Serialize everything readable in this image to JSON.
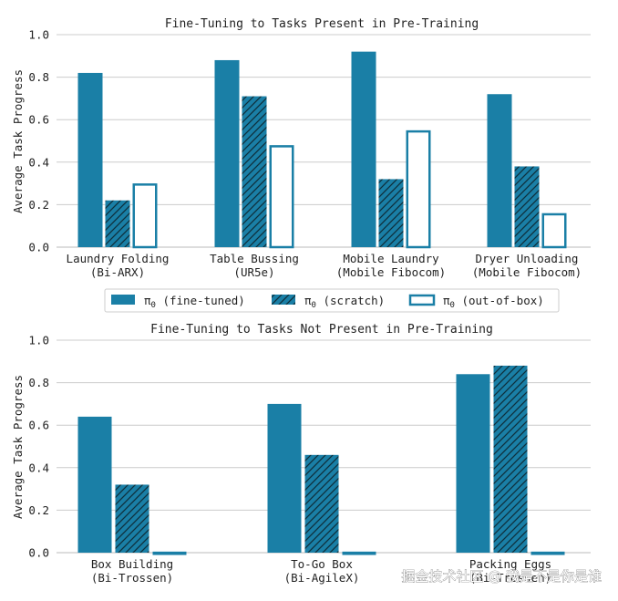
{
  "colors": {
    "bar": "#1a7fa6",
    "hatch": "#0e2f3c",
    "grid": "#cccccc",
    "axis": "#bbbbbb"
  },
  "chart_data": [
    {
      "type": "bar",
      "title": "Fine-Tuning to Tasks Present in Pre-Training",
      "ylabel": "Average Task Progress",
      "ylim": [
        0,
        1.0
      ],
      "yticks": [
        "0.0",
        "0.2",
        "0.4",
        "0.6",
        "0.8",
        "1.0"
      ],
      "categories": [
        [
          "Laundry Folding",
          "(Bi-ARX)"
        ],
        [
          "Table Bussing",
          "(UR5e)"
        ],
        [
          "Mobile Laundry",
          "(Mobile Fibocom)"
        ],
        [
          "Dryer Unloading",
          "(Mobile Fibocom)"
        ]
      ],
      "series": [
        {
          "name": "π0 (fine-tuned)",
          "style": "solid",
          "values": [
            0.82,
            0.88,
            0.92,
            0.72
          ]
        },
        {
          "name": "π0 (scratch)",
          "style": "hatch",
          "values": [
            0.22,
            0.71,
            0.32,
            0.38
          ]
        },
        {
          "name": "π0 (out-of-box)",
          "style": "outline",
          "values": [
            0.3,
            0.48,
            0.55,
            0.16
          ]
        }
      ],
      "grid": true,
      "legend": "bottom-center"
    },
    {
      "type": "bar",
      "title": "Fine-Tuning to Tasks Not Present in Pre-Training",
      "ylabel": "Average Task Progress",
      "ylim": [
        0,
        1.0
      ],
      "yticks": [
        "0.0",
        "0.2",
        "0.4",
        "0.6",
        "0.8",
        "1.0"
      ],
      "categories": [
        [
          "Box Building",
          "(Bi-Trossen)"
        ],
        [
          "To-Go Box",
          "(Bi-AgileX)"
        ],
        [
          "Packing Eggs",
          "(Bi-Trossen)"
        ]
      ],
      "series": [
        {
          "style": "solid",
          "values": [
            0.64,
            0.7,
            0.84
          ]
        },
        {
          "style": "hatch",
          "values": [
            0.32,
            0.46,
            0.88
          ]
        },
        {
          "style": "outline",
          "values": [
            0.005,
            0.005,
            0.005
          ]
        }
      ],
      "grid": true
    }
  ],
  "legend": {
    "items": [
      {
        "prefix": "π",
        "sub": "0",
        "text": " (fine-tuned)"
      },
      {
        "prefix": "π",
        "sub": "0",
        "text": " (scratch)"
      },
      {
        "prefix": "π",
        "sub": "0",
        "text": " (out-of-box)"
      }
    ]
  },
  "watermark": "掘金技术社区 @ 我是不是你是谁"
}
